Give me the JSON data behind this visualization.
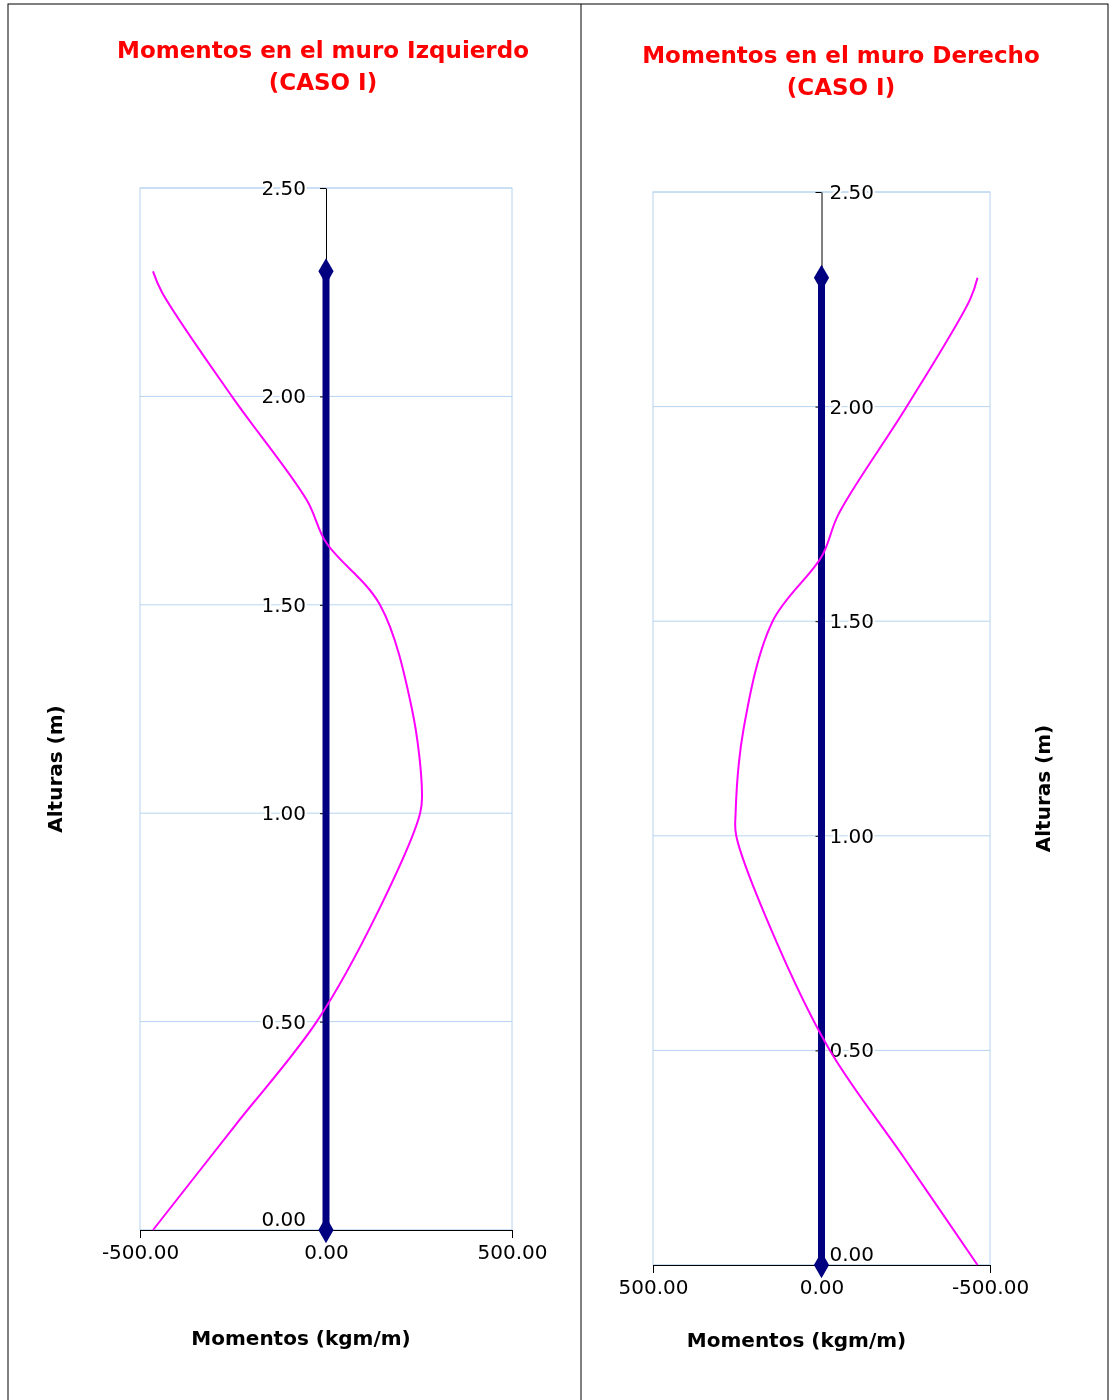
{
  "chart_data": [
    {
      "type": "line",
      "title": "Momentos en el muro Izquierdo (CASO I)",
      "xlabel": "Momentos (kgm/m)",
      "ylabel": "Alturas (m)",
      "xlim": [
        -500,
        500
      ],
      "xticks": [
        {
          "value": -500,
          "label": "-500.00"
        },
        {
          "value": 0,
          "label": "0.00"
        },
        {
          "value": 500,
          "label": "500.00"
        }
      ],
      "ylim": [
        0,
        2.5
      ],
      "yticks": [
        {
          "value": 0,
          "label": "0.00"
        },
        {
          "value": 0.5,
          "label": "0.50"
        },
        {
          "value": 1,
          "label": "1.00"
        },
        {
          "value": 1.5,
          "label": "1.50"
        },
        {
          "value": 2,
          "label": "2.00"
        },
        {
          "value": 2.5,
          "label": "2.50"
        }
      ],
      "grid": "y",
      "series": [
        {
          "type": "line",
          "color": "#000080",
          "marker": "diamond",
          "x": [
            0,
            0
          ],
          "values": [
            0,
            2.3
          ]
        },
        {
          "type": "line",
          "color": "#ff00ff",
          "marker": "none",
          "x": [
            -465,
            -245,
            -25,
            132,
            253,
            258,
            231,
            145,
            0,
            -51,
            -253,
            -441,
            -465
          ],
          "values": [
            0,
            0.25,
            0.5,
            0.75,
            1,
            1.05,
            1.25,
            1.5,
            1.65,
            1.75,
            2,
            2.25,
            2.3
          ]
        }
      ]
    },
    {
      "type": "line",
      "title": "Momentos en el muro Derecho (CASO I)",
      "xlabel": "Momentos (kgm/m)",
      "ylabel": "Alturas (m)",
      "xlim": [
        500,
        -500
      ],
      "xticks": [
        {
          "value": 500,
          "label": "500.00"
        },
        {
          "value": 0,
          "label": "0.00"
        },
        {
          "value": -500,
          "label": "-500.00"
        }
      ],
      "ylim": [
        0,
        2.5
      ],
      "yticks": [
        {
          "value": 0,
          "label": "0.00"
        },
        {
          "value": 0.5,
          "label": "0.50"
        },
        {
          "value": 1,
          "label": "1.00"
        },
        {
          "value": 1.5,
          "label": "1.50"
        },
        {
          "value": 2,
          "label": "2.00"
        },
        {
          "value": 2.5,
          "label": "2.50"
        }
      ],
      "grid": "y",
      "series": [
        {
          "type": "line",
          "color": "#000080",
          "marker": "diamond",
          "x": [
            0,
            0
          ],
          "values": [
            0,
            2.3
          ]
        },
        {
          "type": "line",
          "color": "#ff00ff",
          "marker": "none",
          "x": [
            -463,
            -245,
            -25,
            132,
            253,
            255,
            231,
            145,
            0,
            -51,
            -253,
            -441,
            -463
          ],
          "values": [
            0,
            0.25,
            0.5,
            0.75,
            1,
            1.05,
            1.25,
            1.5,
            1.65,
            1.75,
            2,
            2.25,
            2.3
          ]
        }
      ]
    }
  ]
}
